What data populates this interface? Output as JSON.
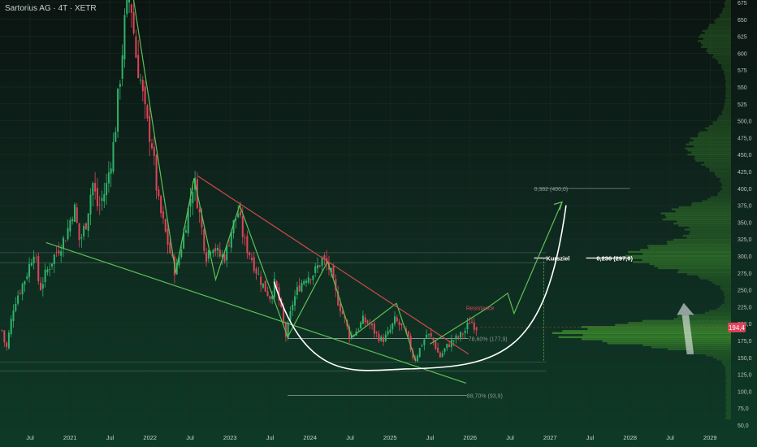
{
  "chart_data": {
    "type": "candlestick",
    "title": "Sartorius AG · 4T · XETR",
    "price_axis": {
      "ticks": [
        "675",
        "650",
        "625",
        "600",
        "575",
        "550",
        "525",
        "500,0",
        "475,0",
        "450,0",
        "425,0",
        "400,0",
        "375,0",
        "350,0",
        "325,0",
        "300,0",
        "275,0",
        "250,0",
        "225,0",
        "200,0",
        "175,0",
        "150,0",
        "125,0",
        "100,0",
        "75,0",
        "50,0"
      ],
      "ylim": [
        40,
        680
      ]
    },
    "time_axis": {
      "ticks": [
        {
          "label": "Jul",
          "t": 2020.5
        },
        {
          "label": "2021",
          "t": 2021.0
        },
        {
          "label": "Jul",
          "t": 2021.5
        },
        {
          "label": "2022",
          "t": 2022.0
        },
        {
          "label": "Jul",
          "t": 2022.5
        },
        {
          "label": "2023",
          "t": 2023.0
        },
        {
          "label": "Jul",
          "t": 2023.5
        },
        {
          "label": "2024",
          "t": 2024.0
        },
        {
          "label": "Jul",
          "t": 2024.5
        },
        {
          "label": "2025",
          "t": 2025.0
        },
        {
          "label": "Jul",
          "t": 2025.5
        },
        {
          "label": "2026",
          "t": 2026.0
        },
        {
          "label": "Jul",
          "t": 2026.5
        },
        {
          "label": "2027",
          "t": 2027.0
        },
        {
          "label": "Jul",
          "t": 2027.5
        },
        {
          "label": "2028",
          "t": 2028.0
        },
        {
          "label": "Jul",
          "t": 2028.5
        },
        {
          "label": "2029",
          "t": 2029.0
        }
      ]
    },
    "price_path": [
      [
        2020.15,
        190
      ],
      [
        2020.2,
        160
      ],
      [
        2020.3,
        230
      ],
      [
        2020.45,
        270
      ],
      [
        2020.55,
        310
      ],
      [
        2020.62,
        250
      ],
      [
        2020.7,
        275
      ],
      [
        2020.8,
        300
      ],
      [
        2020.95,
        330
      ],
      [
        2021.05,
        375
      ],
      [
        2021.12,
        320
      ],
      [
        2021.2,
        350
      ],
      [
        2021.28,
        410
      ],
      [
        2021.35,
        370
      ],
      [
        2021.45,
        400
      ],
      [
        2021.55,
        470
      ],
      [
        2021.62,
        560
      ],
      [
        2021.68,
        640
      ],
      [
        2021.75,
        690
      ],
      [
        2021.82,
        600
      ],
      [
        2021.88,
        560
      ],
      [
        2021.95,
        500
      ],
      [
        2022.02,
        470
      ],
      [
        2022.1,
        380
      ],
      [
        2022.18,
        340
      ],
      [
        2022.26,
        300
      ],
      [
        2022.32,
        275
      ],
      [
        2022.4,
        320
      ],
      [
        2022.48,
        370
      ],
      [
        2022.55,
        415
      ],
      [
        2022.62,
        360
      ],
      [
        2022.7,
        300
      ],
      [
        2022.78,
        320
      ],
      [
        2022.86,
        300
      ],
      [
        2022.94,
        300
      ],
      [
        2023.02,
        340
      ],
      [
        2023.1,
        365
      ],
      [
        2023.18,
        320
      ],
      [
        2023.26,
        300
      ],
      [
        2023.34,
        275
      ],
      [
        2023.42,
        255
      ],
      [
        2023.5,
        240
      ],
      [
        2023.56,
        260
      ],
      [
        2023.62,
        230
      ],
      [
        2023.7,
        180
      ],
      [
        2023.78,
        230
      ],
      [
        2023.86,
        255
      ],
      [
        2023.95,
        270
      ],
      [
        2024.05,
        275
      ],
      [
        2024.15,
        295
      ],
      [
        2024.25,
        280
      ],
      [
        2024.33,
        240
      ],
      [
        2024.42,
        210
      ],
      [
        2024.5,
        180
      ],
      [
        2024.58,
        190
      ],
      [
        2024.66,
        205
      ],
      [
        2024.74,
        200
      ],
      [
        2024.82,
        185
      ],
      [
        2024.9,
        175
      ],
      [
        2024.98,
        185
      ],
      [
        2025.06,
        205
      ],
      [
        2025.14,
        195
      ],
      [
        2025.22,
        180
      ],
      [
        2025.3,
        145
      ],
      [
        2025.38,
        165
      ],
      [
        2025.46,
        185
      ],
      [
        2025.54,
        175
      ],
      [
        2025.62,
        150
      ],
      [
        2025.7,
        165
      ],
      [
        2025.78,
        175
      ],
      [
        2025.86,
        180
      ],
      [
        2025.94,
        190
      ],
      [
        2026.0,
        205
      ],
      [
        2026.05,
        198
      ],
      [
        2026.08,
        194.4
      ]
    ],
    "current_price": "194,4",
    "annotations": [
      {
        "text": "0,382 (400,0)",
        "price": 400,
        "t": 2026.8
      },
      {
        "text": "Kursziel",
        "price": 297,
        "t": 2026.95
      },
      {
        "text": "0,236 (297,0)",
        "price": 297,
        "t": 2027.58
      },
      {
        "text": "Resistance",
        "price": 220,
        "t": 2025.95
      },
      {
        "text": "78,60% (177,9)",
        "price": 177.9,
        "t": 2025.98
      },
      {
        "text": "88,70% (93,9)",
        "price": 93.9,
        "t": 2025.96
      }
    ],
    "horizontal_levels": [
      {
        "price": 400,
        "t1": 2026.8,
        "t2": 2028.0,
        "color": "#6f8078"
      },
      {
        "price": 297,
        "t1": 2026.8,
        "t2": 2026.95,
        "color": "#ffffff"
      },
      {
        "price": 297,
        "t1": 2027.45,
        "t2": 2028.0,
        "color": "#ffffff"
      },
      {
        "price": 177.9,
        "t1": 2023.72,
        "t2": 2025.98,
        "color": "#9aa59f"
      },
      {
        "price": 93.9,
        "t1": 2023.72,
        "t2": 2025.96,
        "color": "#9aa59f"
      },
      {
        "price": 143,
        "t1": 2020.0,
        "t2": 2026.95,
        "color": "#3d5a4c"
      },
      {
        "price": 130,
        "t1": 2020.0,
        "t2": 2026.95,
        "color": "#3d5a4c"
      },
      {
        "price": 305,
        "t1": 2020.0,
        "t2": 2026.95,
        "color": "#3d5a4c"
      },
      {
        "price": 290,
        "t1": 2020.0,
        "t2": 2026.95,
        "color": "#3d5a4c"
      }
    ],
    "trendlines": [
      {
        "color": "#5fbf55",
        "points": [
          [
            2021.78,
            690
          ],
          [
            2022.32,
            275
          ],
          [
            2022.55,
            415
          ],
          [
            2022.82,
            265
          ],
          [
            2023.12,
            375
          ],
          [
            2023.72,
            180
          ],
          [
            2024.22,
            292
          ],
          [
            2024.52,
            180
          ],
          [
            2025.08,
            230
          ],
          [
            2025.32,
            145
          ]
        ]
      },
      {
        "color": "#5fbf55",
        "points": [
          [
            2020.7,
            320
          ],
          [
            2025.95,
            112
          ]
        ]
      },
      {
        "color": "#cc4a4a",
        "points": [
          [
            2022.6,
            418
          ],
          [
            2025.98,
            155
          ]
        ]
      },
      {
        "color": "#5fbf55",
        "points": [
          [
            2025.5,
            170
          ],
          [
            2026.2,
            222
          ],
          [
            2026.47,
            245
          ],
          [
            2026.55,
            215
          ],
          [
            2027.15,
            380
          ]
        ]
      }
    ],
    "cup_curve": {
      "color": "#ffffff",
      "center_t": 2025.2,
      "bottom_price": 133,
      "left": [
        2023.55,
        262
      ],
      "right": [
        2027.2,
        375
      ]
    },
    "arrow_up": {
      "t": 2028.6,
      "from": 155,
      "to": 230
    },
    "volume_profile": "right-side"
  }
}
